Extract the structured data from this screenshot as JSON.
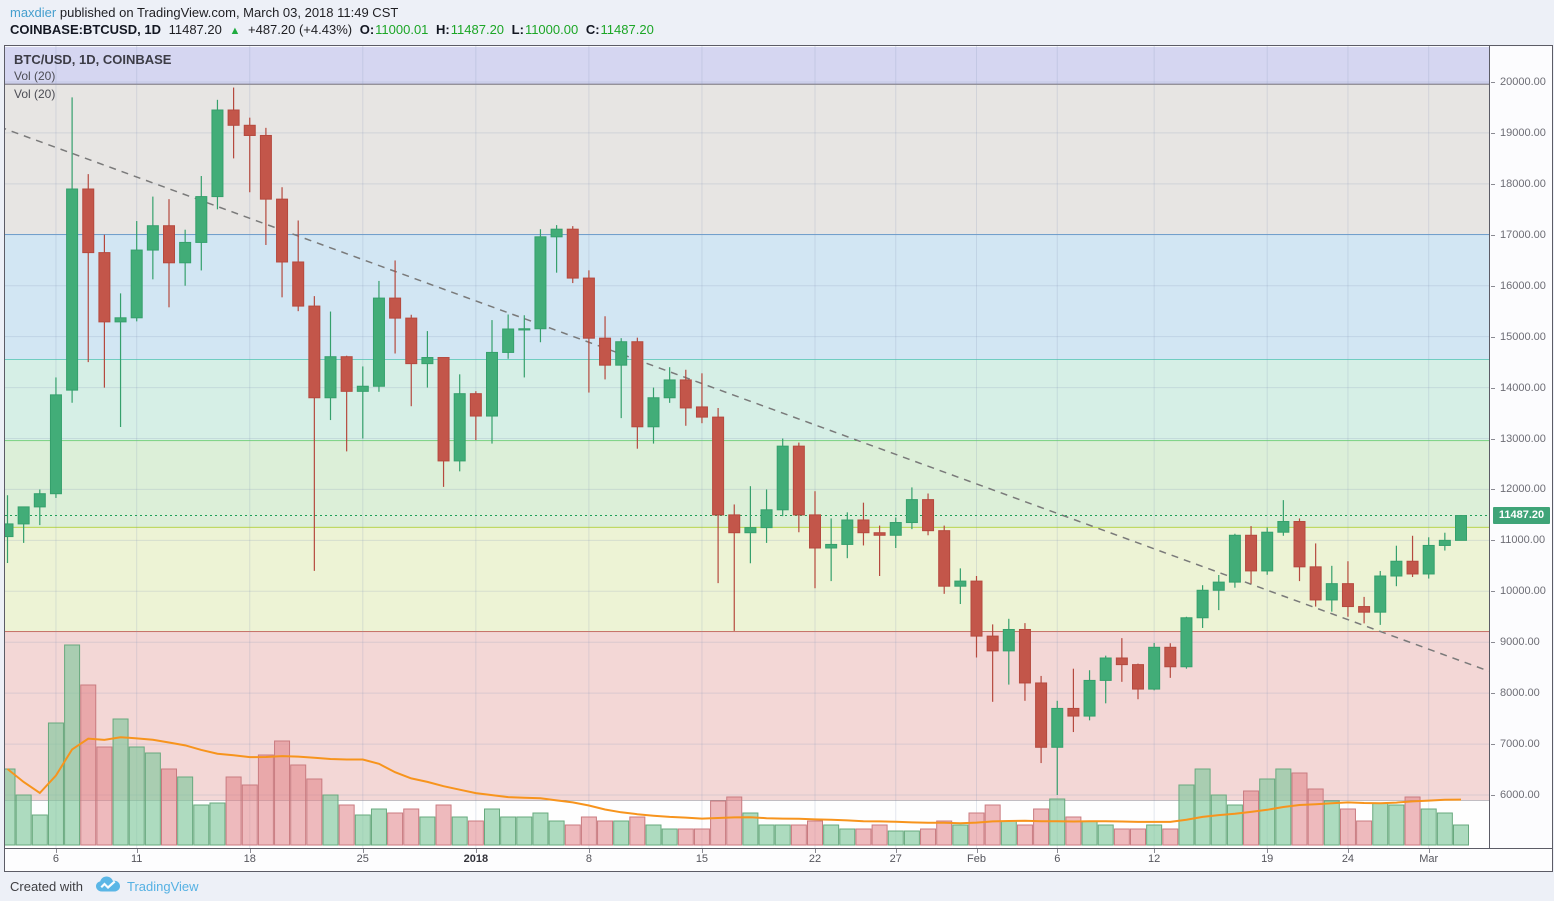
{
  "header": {
    "author": "maxdier",
    "published": " published on TradingView.com, March 03, 2018 11:49 CST",
    "symbol_label": "COINBASE:BTCUSD, 1D",
    "last_price": "11487.20",
    "arrow": "▲",
    "change": "+487.20 (+4.43%)",
    "o_label": "O:",
    "o_value": "11000.01",
    "h_label": "H:",
    "h_value": "11487.20",
    "l_label": "L:",
    "l_value": "11000.00",
    "c_label": "C:",
    "c_value": "11487.20"
  },
  "legend": {
    "title": "BTC/USD, 1D, COINBASE",
    "vol_indicator_1": "Vol (20)",
    "vol_indicator_2": "Vol (20)"
  },
  "footer": {
    "created_with": "Created with",
    "brand": "TradingView",
    "brand_color": "#55b1e3",
    "cloud_icon": "tradingview-cloud-logo"
  },
  "colors": {
    "up_fill": "#42ad78",
    "up_stroke": "#35a06c",
    "down_fill": "#c3564a",
    "down_stroke": "#b5493e",
    "vol_up_fill": "rgba(129,199,156,0.65)",
    "vol_up_stroke": "#68a97e",
    "vol_down_fill": "rgba(224,130,135,0.55)",
    "vol_down_stroke": "#c97b80",
    "vol_ma": "#f7941d",
    "grid": "rgba(130,148,182,0.22)",
    "trendline": "#7a7a7a",
    "current_price_line": "#1d9e57",
    "current_price_label_bg": "#3fa478"
  },
  "chart_data": {
    "type": "candlestick",
    "title": "BTC/USD, 1D, COINBASE",
    "symbol": "BTC/USD",
    "interval": "1D",
    "exchange": "COINBASE",
    "current_price": 11487.2,
    "price_axis": {
      "min": 4980,
      "max": 20690,
      "tick_min": 6000,
      "tick_max": 20000,
      "tick_step": 1000,
      "tick_labels": [
        "20000.00",
        "19000.00",
        "18000.00",
        "17000.00",
        "16000.00",
        "15000.00",
        "14000.00",
        "13000.00",
        "12000.00",
        "11000.00",
        "10000.00",
        "9000.00",
        "8000.00",
        "7000.00",
        "6000.00"
      ]
    },
    "x_ticks": [
      {
        "index": 3,
        "label": "6"
      },
      {
        "index": 8,
        "label": "11"
      },
      {
        "index": 15,
        "label": "18"
      },
      {
        "index": 22,
        "label": "25"
      },
      {
        "index": 29,
        "label": "2018",
        "bold": true
      },
      {
        "index": 36,
        "label": "8"
      },
      {
        "index": 43,
        "label": "15"
      },
      {
        "index": 50,
        "label": "22"
      },
      {
        "index": 55,
        "label": "27"
      },
      {
        "index": 60,
        "label": "Feb"
      },
      {
        "index": 65,
        "label": "6"
      },
      {
        "index": 71,
        "label": "12"
      },
      {
        "index": 78,
        "label": "19"
      },
      {
        "index": 83,
        "label": "24"
      },
      {
        "index": 88,
        "label": "Mar"
      }
    ],
    "bands": [
      {
        "from_price": 20690,
        "to_price": 19950,
        "fill": "#d5d6f1",
        "bottom_line": "#514c5c",
        "bottom_line_width": 1.5
      },
      {
        "from_price": 19950,
        "to_price": 17000,
        "fill": "#e7e5e3",
        "bottom_line": "#3a80c4",
        "bottom_line_width": 1.2
      },
      {
        "from_price": 17000,
        "to_price": 14550,
        "fill": "#d2e6f3",
        "bottom_line": "#21b3a2",
        "bottom_line_width": 1.2
      },
      {
        "from_price": 14550,
        "to_price": 12950,
        "fill": "#d6efe6",
        "bottom_line": "#2db92d",
        "bottom_line_width": 1.2
      },
      {
        "from_price": 12950,
        "to_price": 11250,
        "fill": "#dcefd8",
        "bottom_line": "#a4c921",
        "bottom_line_width": 1.5
      },
      {
        "from_price": 11250,
        "to_price": 9200,
        "fill": "#edf3d5",
        "bottom_line": "#b12a2a",
        "bottom_line_width": 1.2
      },
      {
        "from_price": 9200,
        "to_price": 5890,
        "fill": "#f3d7d6",
        "bottom_line": "#82808a",
        "bottom_line_width": 1
      },
      {
        "from_price": 5890,
        "to_price": 4980,
        "fill": "#fefefe",
        "bottom_line": null
      }
    ],
    "trendline": {
      "style": "dashed",
      "from": {
        "index": -0.5,
        "price": 19120
      },
      "to": {
        "index": 92,
        "price": 8400
      }
    },
    "vol_ma_period": 20,
    "candles_columns": [
      "date",
      "open",
      "high",
      "low",
      "close",
      "volume_rel"
    ],
    "candles": [
      [
        "2017-12-03",
        11074,
        11886,
        10555,
        11323,
        38
      ],
      [
        "2017-12-04",
        11323,
        11657,
        10950,
        11657,
        25
      ],
      [
        "2017-12-05",
        11657,
        11999,
        11300,
        11916,
        15
      ],
      [
        "2017-12-06",
        11916,
        14199,
        11833,
        13857,
        61
      ],
      [
        "2017-12-07",
        13950,
        19697,
        13701,
        17899,
        100
      ],
      [
        "2017-12-08",
        17899,
        18190,
        14500,
        16650,
        80
      ],
      [
        "2017-12-09",
        16650,
        17000,
        14000,
        15290,
        49
      ],
      [
        "2017-12-10",
        15290,
        15850,
        13226,
        15370,
        63
      ],
      [
        "2017-12-11",
        15370,
        17270,
        15300,
        16700,
        49
      ],
      [
        "2017-12-12",
        16700,
        17750,
        16125,
        17178,
        46
      ],
      [
        "2017-12-13",
        17178,
        17700,
        15576,
        16450,
        38
      ],
      [
        "2017-12-14",
        16450,
        17100,
        16000,
        16850,
        34
      ],
      [
        "2017-12-15",
        16850,
        18154,
        16300,
        17750,
        20
      ],
      [
        "2017-12-16",
        17750,
        19650,
        17500,
        19450,
        21
      ],
      [
        "2017-12-17",
        19450,
        19891,
        18500,
        19150,
        34
      ],
      [
        "2017-12-18",
        19150,
        19300,
        17835,
        18950,
        30
      ],
      [
        "2017-12-19",
        18950,
        19100,
        16800,
        17700,
        45
      ],
      [
        "2017-12-20",
        17700,
        17934,
        15772,
        16466,
        52
      ],
      [
        "2017-12-21",
        16466,
        17281,
        15500,
        15600,
        40
      ],
      [
        "2017-12-22",
        15600,
        15795,
        10400,
        13800,
        33
      ],
      [
        "2017-12-23",
        13800,
        15493,
        13362,
        14606,
        25
      ],
      [
        "2017-12-24",
        14606,
        14626,
        12747,
        13926,
        20
      ],
      [
        "2017-12-25",
        13926,
        14415,
        13001,
        14026,
        15
      ],
      [
        "2017-12-26",
        14026,
        16094,
        13917,
        15757,
        18
      ],
      [
        "2017-12-27",
        15757,
        16496,
        14669,
        15364,
        16
      ],
      [
        "2017-12-28",
        15364,
        15430,
        13634,
        14470,
        18
      ],
      [
        "2017-12-29",
        14470,
        15109,
        14000,
        14590,
        14
      ],
      [
        "2017-12-30",
        14590,
        14590,
        12050,
        12560,
        20
      ],
      [
        "2017-12-31",
        12560,
        14260,
        12355,
        13880,
        14
      ],
      [
        "2018-01-01",
        13880,
        13929,
        12970,
        13441,
        12
      ],
      [
        "2018-01-02",
        13441,
        15325,
        12900,
        14690,
        18
      ],
      [
        "2018-01-03",
        14690,
        15435,
        14565,
        15150,
        14
      ],
      [
        "2018-01-04",
        15150,
        15420,
        14199,
        15155,
        14
      ],
      [
        "2018-01-05",
        15155,
        17109,
        14890,
        16960,
        16
      ],
      [
        "2018-01-06",
        16960,
        17190,
        16256,
        17110,
        12
      ],
      [
        "2018-01-07",
        17110,
        17170,
        16052,
        16150,
        10
      ],
      [
        "2018-01-08",
        16150,
        16302,
        13902,
        14970,
        14
      ],
      [
        "2018-01-09",
        14970,
        15400,
        14160,
        14440,
        12
      ],
      [
        "2018-01-10",
        14440,
        14970,
        13400,
        14900,
        12
      ],
      [
        "2018-01-11",
        14900,
        14980,
        12800,
        13230,
        14
      ],
      [
        "2018-01-12",
        13230,
        14000,
        12900,
        13800,
        10
      ],
      [
        "2018-01-13",
        13800,
        14400,
        13700,
        14150,
        8
      ],
      [
        "2018-01-14",
        14150,
        14350,
        13250,
        13600,
        8
      ],
      [
        "2018-01-15",
        13620,
        14280,
        13300,
        13420,
        8
      ],
      [
        "2018-01-16",
        13420,
        13600,
        10160,
        11500,
        22
      ],
      [
        "2018-01-17",
        11500,
        11705,
        9222,
        11150,
        24
      ],
      [
        "2018-01-18",
        11150,
        12064,
        10550,
        11250,
        16
      ],
      [
        "2018-01-19",
        11250,
        12000,
        10950,
        11600,
        10
      ],
      [
        "2018-01-20",
        11600,
        13000,
        11475,
        12850,
        10
      ],
      [
        "2018-01-21",
        12850,
        12920,
        11159,
        11500,
        10
      ],
      [
        "2018-01-22",
        11500,
        11965,
        10060,
        10850,
        12
      ],
      [
        "2018-01-23",
        10850,
        11430,
        10200,
        10920,
        10
      ],
      [
        "2018-01-24",
        10920,
        11550,
        10650,
        11400,
        8
      ],
      [
        "2018-01-25",
        11400,
        11740,
        10900,
        11150,
        8
      ],
      [
        "2018-01-26",
        11150,
        11290,
        10300,
        11100,
        10
      ],
      [
        "2018-01-27",
        11100,
        11450,
        10850,
        11350,
        7
      ],
      [
        "2018-01-28",
        11350,
        12040,
        11220,
        11800,
        7
      ],
      [
        "2018-01-29",
        11800,
        11920,
        11100,
        11190,
        8
      ],
      [
        "2018-01-30",
        11190,
        11290,
        9950,
        10100,
        12
      ],
      [
        "2018-01-31",
        10100,
        10450,
        9750,
        10200,
        10
      ],
      [
        "2018-02-01",
        10200,
        10300,
        8700,
        9120,
        16
      ],
      [
        "2018-02-02",
        9120,
        9350,
        7830,
        8830,
        20
      ],
      [
        "2018-02-03",
        8830,
        9460,
        8168,
        9250,
        12
      ],
      [
        "2018-02-04",
        9250,
        9375,
        7850,
        8200,
        10
      ],
      [
        "2018-02-05",
        8200,
        8338,
        6627,
        6937,
        18
      ],
      [
        "2018-02-06",
        6937,
        7850,
        6000,
        7700,
        23
      ],
      [
        "2018-02-07",
        7700,
        8480,
        7236,
        7550,
        14
      ],
      [
        "2018-02-08",
        7550,
        8450,
        7466,
        8250,
        12
      ],
      [
        "2018-02-09",
        8250,
        8736,
        7800,
        8690,
        10
      ],
      [
        "2018-02-10",
        8690,
        9080,
        8222,
        8560,
        8
      ],
      [
        "2018-02-11",
        8560,
        8580,
        7880,
        8080,
        8
      ],
      [
        "2018-02-12",
        8080,
        8985,
        8055,
        8900,
        10
      ],
      [
        "2018-02-13",
        8900,
        8980,
        8300,
        8518,
        8
      ],
      [
        "2018-02-14",
        8518,
        9500,
        8480,
        9480,
        30
      ],
      [
        "2018-02-15",
        9480,
        10120,
        9280,
        10020,
        38
      ],
      [
        "2018-02-16",
        10020,
        10320,
        9630,
        10180,
        25
      ],
      [
        "2018-02-17",
        10180,
        11130,
        10070,
        11100,
        20
      ],
      [
        "2018-02-18",
        11100,
        11280,
        10150,
        10400,
        27
      ],
      [
        "2018-02-19",
        10400,
        11250,
        10324,
        11160,
        33
      ],
      [
        "2018-02-20",
        11160,
        11790,
        11090,
        11370,
        38
      ],
      [
        "2018-02-21",
        11370,
        11430,
        10200,
        10480,
        36
      ],
      [
        "2018-02-22",
        10480,
        10940,
        9700,
        9830,
        28
      ],
      [
        "2018-02-23",
        9830,
        10500,
        9600,
        10150,
        22
      ],
      [
        "2018-02-24",
        10150,
        10590,
        9500,
        9700,
        18
      ],
      [
        "2018-02-25",
        9700,
        9890,
        9370,
        9590,
        12
      ],
      [
        "2018-02-26",
        9590,
        10399,
        9340,
        10300,
        21
      ],
      [
        "2018-02-27",
        10300,
        10895,
        10100,
        10590,
        20
      ],
      [
        "2018-02-28",
        10590,
        11090,
        10280,
        10340,
        24
      ],
      [
        "2018-03-01",
        10340,
        11060,
        10250,
        10900,
        18
      ],
      [
        "2018-03-02",
        10900,
        11150,
        10800,
        11000,
        16
      ],
      [
        "2018-03-03",
        11000.01,
        11487.2,
        11000.0,
        11487.2,
        10
      ]
    ]
  }
}
